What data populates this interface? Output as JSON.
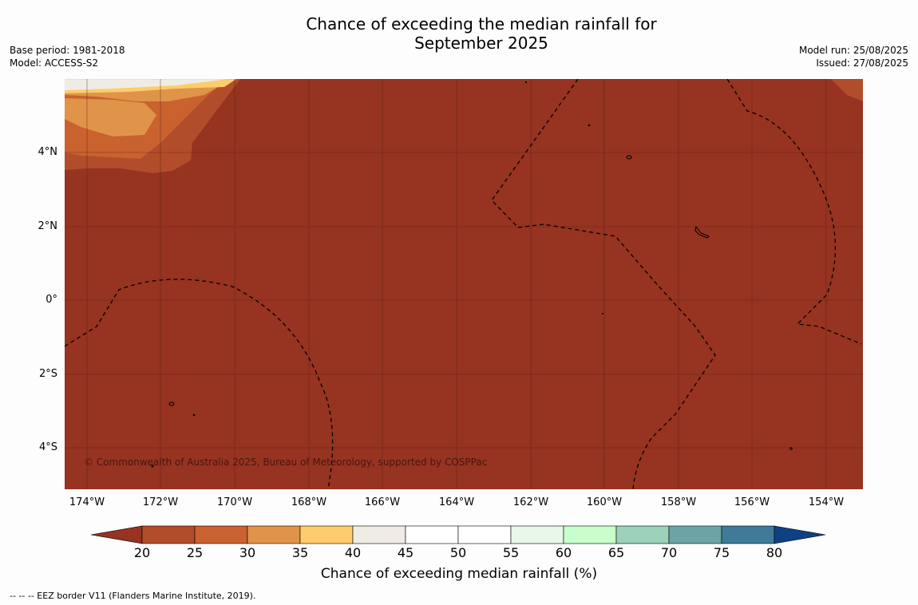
{
  "title_line1": "Chance of exceeding the median rainfall for",
  "title_line2": "September 2025",
  "base_period": "Base period: 1981-2018",
  "model": "Model: ACCESS-S2",
  "model_run": "Model run: 25/08/2025",
  "issued": "Issued: 27/08/2025",
  "credit": "© Commonwealth of Australia 2025, Bureau of Meteorology, supported by COSPPac",
  "lat_labels": [
    "4°N",
    "2°N",
    "0°",
    "2°S",
    "4°S"
  ],
  "lon_labels": [
    "174°W",
    "172°W",
    "170°W",
    "168°W",
    "166°W",
    "164°W",
    "162°W",
    "160°W",
    "158°W",
    "156°W",
    "154°W"
  ],
  "colorbar": {
    "ticks": [
      "20",
      "25",
      "30",
      "35",
      "40",
      "45",
      "50",
      "55",
      "60",
      "65",
      "70",
      "75",
      "80"
    ],
    "label": "Chance of exceeding median rainfall (%)",
    "colors": [
      "#963321",
      "#b14d2a",
      "#c9622f",
      "#e09449",
      "#fdcd6b",
      "#efece6",
      "#ffffff",
      "#ffffff",
      "#e9f7e9",
      "#c8fecb",
      "#9dd1b9",
      "#6ea3a5",
      "#3f7a99",
      "#0e4183"
    ]
  },
  "map_colors": {
    "dominant": "#963321"
  },
  "footnote": "-- -- -- EEZ border V11 (Flanders Marine Institute, 2019)."
}
